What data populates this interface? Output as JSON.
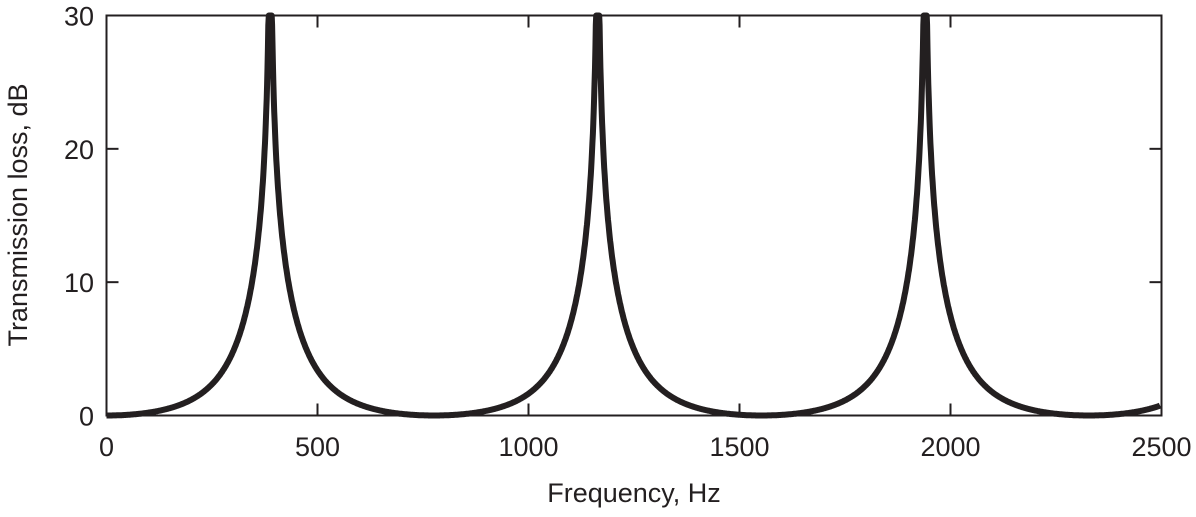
{
  "chart_data": {
    "type": "line",
    "title": "",
    "xlabel": "Frequency, Hz",
    "ylabel": "Transmission loss, dB",
    "xlim": [
      0,
      2500
    ],
    "ylim": [
      0,
      30
    ],
    "xticks": [
      0,
      500,
      1000,
      1500,
      2000,
      2500
    ],
    "yticks": [
      0,
      10,
      20,
      30
    ],
    "grid": false,
    "legend": null,
    "line_color": "#231f20",
    "series": [
      {
        "name": "Transmission loss",
        "peaks_hz": [
          388,
          1165,
          1942
        ],
        "minima_hz": [
          0,
          777,
          1554,
          2331
        ],
        "peak_value_clipped_at": 30,
        "x": [
          0,
          100,
          200,
          250,
          300,
          350,
          370,
          380,
          388,
          396,
          410,
          430,
          470,
          500,
          600,
          700,
          777,
          850,
          950,
          1050,
          1100,
          1140,
          1155,
          1165,
          1175,
          1190,
          1230,
          1300,
          1400,
          1500,
          1554,
          1650,
          1750,
          1850,
          1900,
          1930,
          1942,
          1955,
          1980,
          2050,
          2150,
          2250,
          2331,
          2400,
          2500
        ],
        "y": [
          0,
          0.3,
          1.4,
          2.6,
          4.6,
          9.5,
          14,
          20,
          30,
          20,
          11,
          7,
          4.5,
          3.3,
          1.4,
          0.3,
          0,
          0.3,
          1.6,
          4.6,
          8.0,
          15,
          21,
          30,
          21,
          13,
          7,
          3.3,
          1.3,
          0.2,
          0,
          0.5,
          1.8,
          5.2,
          9.5,
          17,
          30,
          18,
          10,
          4.5,
          1.6,
          0.3,
          0,
          0.2,
          0.9
        ]
      }
    ]
  }
}
